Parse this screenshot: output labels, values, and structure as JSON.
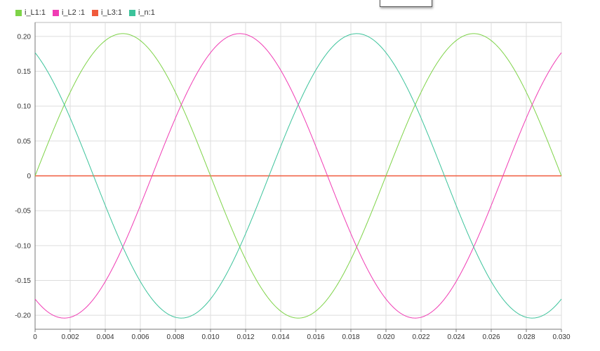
{
  "chart_data": {
    "type": "line",
    "x_range": [
      0,
      0.03
    ],
    "ylim": [
      -0.22,
      0.22
    ],
    "x_ticks": [
      "0",
      "0.002",
      "0.004",
      "0.006",
      "0.008",
      "0.010",
      "0.012",
      "0.014",
      "0.016",
      "0.018",
      "0.020",
      "0.022",
      "0.024",
      "0.026",
      "0.028",
      "0.030"
    ],
    "y_ticks": [
      "0.20",
      "0.15",
      "0.10",
      "0.05",
      "0",
      "-0.05",
      "-0.10",
      "-0.15",
      "-0.20"
    ],
    "grid": true,
    "legend_position": "top-left",
    "series": [
      {
        "name": "i_L1:1",
        "color": "#7ed348",
        "amplitude": 0.204,
        "frequency_hz": 50,
        "phase_deg": 0
      },
      {
        "name": "i_L2 :1",
        "color": "#f03cb4",
        "amplitude": 0.204,
        "frequency_hz": 50,
        "phase_deg": -120
      },
      {
        "name": "i_L3:1",
        "color": "#f05a3c",
        "amplitude": 0.0,
        "frequency_hz": 50,
        "phase_deg": 0
      },
      {
        "name": "i_n:1",
        "color": "#3cc39b",
        "amplitude": 0.204,
        "frequency_hz": 50,
        "phase_deg": 120
      }
    ]
  },
  "colors": {
    "grid": "#dddddd",
    "axis": "#777777"
  }
}
